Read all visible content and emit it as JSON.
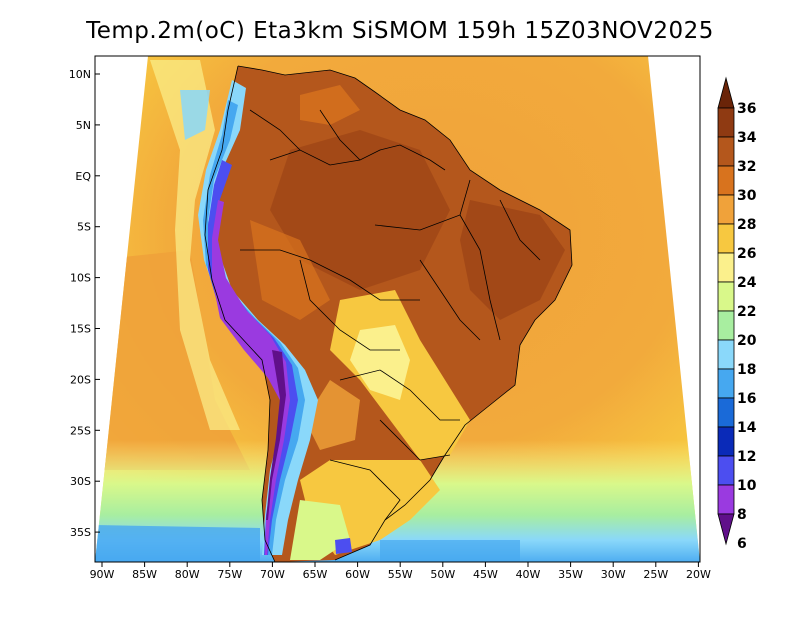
{
  "title": "Temp.2m(oC) Eta3km SiSMOM 159h 15Z03NOV2025",
  "map": {
    "lat_ticks": [
      "10N",
      "5N",
      "EQ",
      "5S",
      "10S",
      "15S",
      "20S",
      "25S",
      "30S",
      "35S"
    ],
    "lon_ticks": [
      "90W",
      "85W",
      "80W",
      "75W",
      "70W",
      "65W",
      "60W",
      "55W",
      "50W",
      "45W",
      "40W",
      "35W",
      "30W",
      "25W",
      "20W"
    ]
  },
  "colorbar": {
    "labels": [
      "36",
      "34",
      "32",
      "30",
      "28",
      "26",
      "24",
      "22",
      "20",
      "18",
      "16",
      "14",
      "12",
      "10",
      "8",
      "6"
    ],
    "colors": [
      "#6a2408",
      "#8f3a12",
      "#b4571c",
      "#d8731e",
      "#f0a23a",
      "#f7c840",
      "#fbf08c",
      "#d9f88a",
      "#a8eea0",
      "#8ad8fa",
      "#46a8f0",
      "#1a6ad8",
      "#0a2ab8",
      "#4c4ef0",
      "#9a3ae0",
      "#60108a"
    ]
  }
}
